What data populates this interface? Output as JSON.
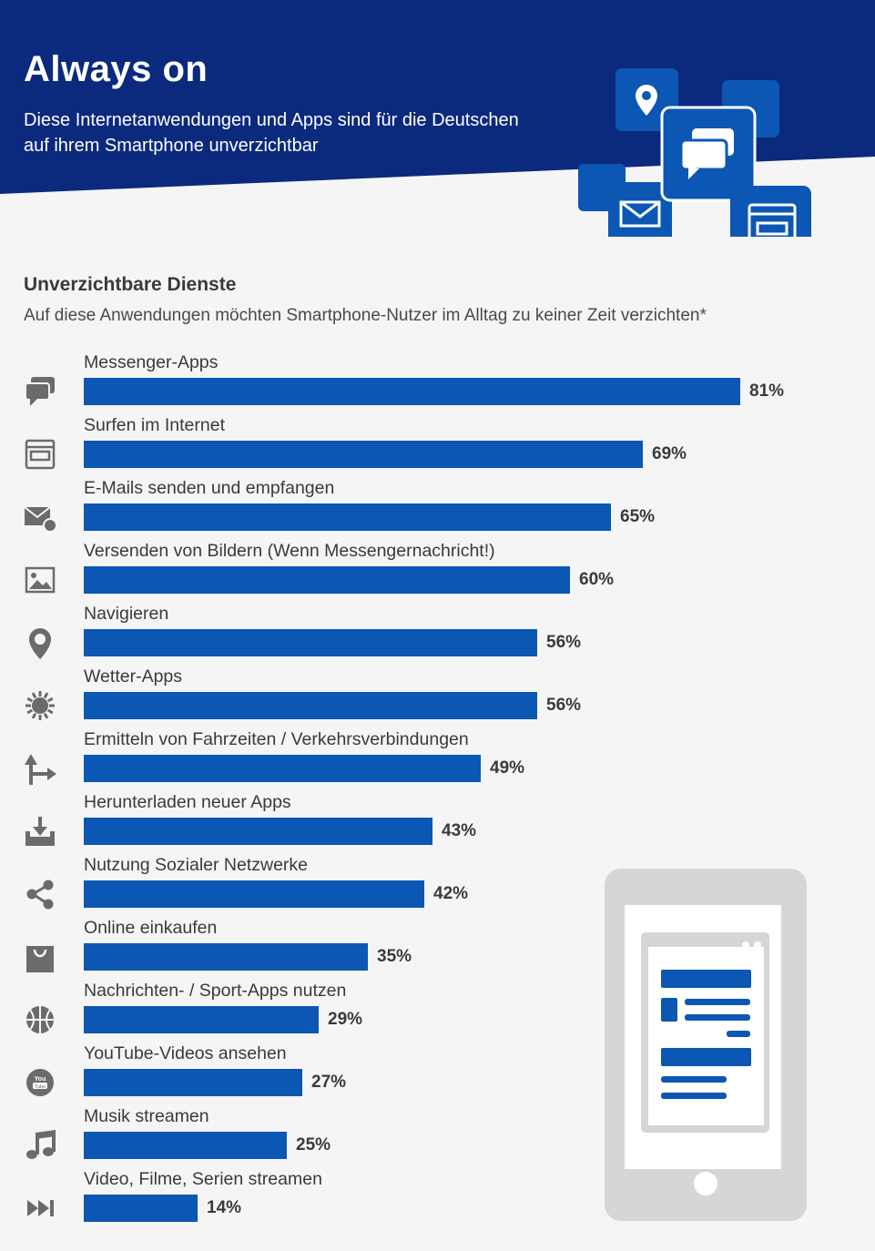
{
  "header": {
    "title": "Always on",
    "subtitle": "Diese Internetanwendungen und Apps sind für die Deutschen auf ihrem Smartphone unverzichtbar",
    "icons": [
      "location-pin-icon",
      "chat-bubbles-icon",
      "mail-icon",
      "browser-window-icon"
    ]
  },
  "section": {
    "title": "Unverzichtbare Dienste",
    "subtitle": "Auf diese Anwendungen möchten Smartphone-Nutzer im Alltag zu keiner Zeit verzichten*"
  },
  "colors": {
    "header_bg": "#0b2a7d",
    "bar": "#0b57b3",
    "icon_gray": "#6b6b6b",
    "phone_gray": "#d6d6d8"
  },
  "chart_data": {
    "type": "bar",
    "orientation": "horizontal",
    "unit": "%",
    "xlim": [
      0,
      100
    ],
    "categories": [
      "Messenger-Apps",
      "Surfen im Internet",
      "E-Mails senden und empfangen",
      "Versenden von Bildern (Wenn Messengernachricht!)",
      "Navigieren",
      "Wetter-Apps",
      "Ermitteln von Fahrzeiten / Verkehrsverbindungen",
      "Herunterladen neuer Apps",
      "Nutzung Sozialer Netzwerke",
      "Online einkaufen",
      "Nachrichten- / Sport-Apps nutzen",
      "YouTube-Videos ansehen",
      "Musik streamen",
      "Video, Filme, Serien streamen"
    ],
    "values": [
      81,
      69,
      65,
      60,
      56,
      56,
      49,
      43,
      42,
      35,
      29,
      27,
      25,
      14
    ],
    "value_labels": [
      "81%",
      "69%",
      "65%",
      "60%",
      "56%",
      "56%",
      "49%",
      "43%",
      "42%",
      "35%",
      "29%",
      "27%",
      "25%",
      "14%"
    ],
    "icons": [
      "chat-bubbles-icon",
      "browser-window-icon",
      "mail-sync-icon",
      "image-icon",
      "location-pin-icon",
      "sun-icon",
      "route-arrow-icon",
      "download-tray-icon",
      "share-icon",
      "shopping-bag-icon",
      "basketball-icon",
      "youtube-icon",
      "music-note-icon",
      "fast-forward-icon"
    ]
  }
}
